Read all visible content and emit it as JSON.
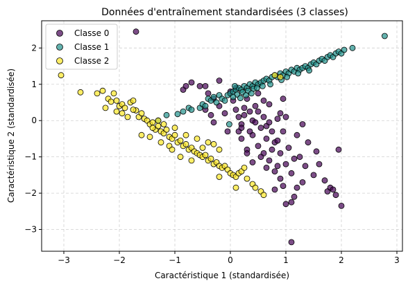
{
  "chart_data": {
    "type": "scatter",
    "title": "Données d'entraînement standardisées (3 classes)",
    "xlabel": "Caractéristique 1 (standardisée)",
    "ylabel": "Caractéristique 2 (standardisée)",
    "xlim": [
      -3.4,
      3.1
    ],
    "ylim": [
      -3.6,
      2.75
    ],
    "xticks": [
      -3,
      -2,
      -1,
      0,
      1,
      2,
      3
    ],
    "yticks": [
      -3,
      -2,
      -1,
      0,
      1,
      2
    ],
    "grid": true,
    "legend_position": "top-left",
    "series": [
      {
        "name": "Classe 0",
        "color": "#440154",
        "points": [
          [
            -1.7,
            2.45
          ],
          [
            -0.85,
            0.85
          ],
          [
            -0.8,
            0.95
          ],
          [
            -0.7,
            1.05
          ],
          [
            -0.55,
            0.95
          ],
          [
            -0.45,
            0.95
          ],
          [
            -0.4,
            0.75
          ],
          [
            -0.2,
            1.1
          ],
          [
            -0.1,
            0.2
          ],
          [
            0.0,
            0.8
          ],
          [
            0.05,
            0.55
          ],
          [
            0.1,
            0.3
          ],
          [
            0.15,
            0.1
          ],
          [
            0.2,
            -0.1
          ],
          [
            0.25,
            0.35
          ],
          [
            0.3,
            0.6
          ],
          [
            0.35,
            0.25
          ],
          [
            0.4,
            0.0
          ],
          [
            0.45,
            0.4
          ],
          [
            0.5,
            0.25
          ],
          [
            0.55,
            -0.2
          ],
          [
            0.6,
            0.1
          ],
          [
            0.65,
            -0.5
          ],
          [
            0.7,
            0.45
          ],
          [
            0.75,
            -0.3
          ],
          [
            0.8,
            -0.6
          ],
          [
            0.85,
            0.05
          ],
          [
            0.9,
            -0.9
          ],
          [
            0.95,
            -0.3
          ],
          [
            1.0,
            -1.2
          ],
          [
            1.05,
            -0.75
          ],
          [
            1.1,
            -1.45
          ],
          [
            1.15,
            -2.1
          ],
          [
            1.2,
            -1.85
          ],
          [
            1.25,
            -1.0
          ],
          [
            1.3,
            -1.7
          ],
          [
            1.35,
            -1.25
          ],
          [
            1.4,
            -0.6
          ],
          [
            1.5,
            -1.5
          ],
          [
            1.55,
            -0.85
          ],
          [
            1.6,
            -1.2
          ],
          [
            1.7,
            -1.65
          ],
          [
            1.75,
            -1.95
          ],
          [
            1.8,
            -1.85
          ],
          [
            1.85,
            -1.9
          ],
          [
            1.9,
            -2.05
          ],
          [
            1.95,
            -0.8
          ],
          [
            2.0,
            -2.35
          ],
          [
            1.0,
            -2.3
          ],
          [
            1.1,
            -2.25
          ],
          [
            1.1,
            -3.35
          ],
          [
            0.2,
            -0.5
          ],
          [
            0.3,
            -0.8
          ],
          [
            0.4,
            -0.4
          ],
          [
            0.5,
            -0.7
          ],
          [
            0.6,
            -0.9
          ],
          [
            0.7,
            -1.1
          ],
          [
            0.8,
            -1.4
          ],
          [
            0.9,
            -1.6
          ],
          [
            0.95,
            -1.8
          ],
          [
            0.35,
            -0.3
          ],
          [
            0.55,
            -1.0
          ],
          [
            0.75,
            -0.8
          ],
          [
            0.85,
            -1.25
          ],
          [
            0.65,
            -0.15
          ],
          [
            0.45,
            -0.05
          ],
          [
            0.25,
            0.15
          ],
          [
            0.15,
            -0.3
          ],
          [
            -0.05,
            -0.3
          ],
          [
            -0.2,
            0.4
          ],
          [
            -0.3,
            0.6
          ],
          [
            -0.35,
            0.15
          ],
          [
            0.6,
            0.55
          ],
          [
            0.9,
            0.2
          ],
          [
            1.0,
            0.1
          ],
          [
            0.5,
            0.75
          ],
          [
            0.3,
            -0.9
          ],
          [
            0.4,
            -1.15
          ],
          [
            0.7,
            -0.05
          ],
          [
            0.2,
            -0.2
          ],
          [
            1.2,
            -0.4
          ],
          [
            1.3,
            -0.1
          ],
          [
            0.85,
            -0.55
          ],
          [
            0.95,
            0.6
          ],
          [
            -0.45,
            0.3
          ],
          [
            -0.3,
            -0.05
          ],
          [
            0.1,
            0.9
          ],
          [
            0.65,
            -1.3
          ],
          [
            1.15,
            -1.05
          ],
          [
            0.8,
            -1.9
          ]
        ]
      },
      {
        "name": "Classe 1",
        "color": "#21918c",
        "points": [
          [
            -1.3,
            0.0
          ],
          [
            -1.15,
            0.15
          ],
          [
            -0.95,
            0.18
          ],
          [
            -0.85,
            0.25
          ],
          [
            -0.75,
            0.35
          ],
          [
            -0.7,
            0.3
          ],
          [
            -0.55,
            0.35
          ],
          [
            -0.5,
            0.45
          ],
          [
            -0.4,
            0.6
          ],
          [
            -0.35,
            0.55
          ],
          [
            -0.3,
            0.65
          ],
          [
            -0.2,
            0.7
          ],
          [
            -0.15,
            0.6
          ],
          [
            -0.05,
            0.7
          ],
          [
            0.0,
            0.75
          ],
          [
            0.05,
            0.8
          ],
          [
            0.1,
            0.85
          ],
          [
            0.15,
            0.9
          ],
          [
            0.2,
            0.85
          ],
          [
            0.25,
            0.95
          ],
          [
            0.3,
            0.9
          ],
          [
            0.35,
            1.0
          ],
          [
            0.4,
            0.95
          ],
          [
            0.45,
            1.05
          ],
          [
            0.5,
            1.0
          ],
          [
            0.55,
            1.05
          ],
          [
            0.6,
            1.1
          ],
          [
            0.65,
            1.15
          ],
          [
            0.7,
            1.1
          ],
          [
            0.75,
            1.2
          ],
          [
            0.8,
            1.25
          ],
          [
            0.85,
            1.2
          ],
          [
            0.9,
            1.3
          ],
          [
            0.95,
            1.25
          ],
          [
            1.0,
            1.35
          ],
          [
            1.05,
            1.3
          ],
          [
            1.1,
            1.4
          ],
          [
            1.15,
            1.35
          ],
          [
            1.2,
            1.45
          ],
          [
            1.25,
            1.4
          ],
          [
            1.3,
            1.45
          ],
          [
            1.35,
            1.5
          ],
          [
            1.4,
            1.45
          ],
          [
            1.45,
            1.55
          ],
          [
            1.5,
            1.6
          ],
          [
            1.55,
            1.55
          ],
          [
            1.6,
            1.65
          ],
          [
            1.65,
            1.7
          ],
          [
            1.7,
            1.65
          ],
          [
            1.75,
            1.75
          ],
          [
            1.8,
            1.8
          ],
          [
            1.85,
            1.75
          ],
          [
            1.9,
            1.85
          ],
          [
            1.95,
            1.9
          ],
          [
            2.0,
            1.85
          ],
          [
            2.05,
            1.95
          ],
          [
            2.2,
            2.0
          ],
          [
            2.78,
            2.33
          ],
          [
            0.12,
            0.72
          ],
          [
            0.22,
            0.78
          ],
          [
            0.32,
            0.82
          ],
          [
            0.42,
            0.88
          ],
          [
            0.18,
            0.62
          ],
          [
            0.28,
            0.7
          ],
          [
            0.38,
            0.75
          ],
          [
            0.48,
            0.9
          ],
          [
            0.58,
            0.95
          ],
          [
            -0.1,
            0.55
          ],
          [
            -0.25,
            0.5
          ],
          [
            -0.45,
            0.4
          ],
          [
            0.05,
            0.65
          ],
          [
            1.02,
            1.2
          ],
          [
            1.22,
            1.3
          ],
          [
            1.42,
            1.38
          ],
          [
            0.72,
            1.0
          ],
          [
            0.92,
            1.12
          ],
          [
            -0.02,
            -0.1
          ],
          [
            0.08,
            0.95
          ]
        ]
      },
      {
        "name": "Classe 2",
        "color": "#fde725",
        "points": [
          [
            -3.05,
            1.25
          ],
          [
            -2.7,
            0.78
          ],
          [
            -2.4,
            0.75
          ],
          [
            -2.3,
            0.82
          ],
          [
            -2.2,
            0.6
          ],
          [
            -2.15,
            0.52
          ],
          [
            -2.1,
            0.75
          ],
          [
            -2.05,
            0.55
          ],
          [
            -2.0,
            0.4
          ],
          [
            -1.95,
            0.45
          ],
          [
            -1.9,
            0.35
          ],
          [
            -1.8,
            0.5
          ],
          [
            -1.75,
            0.55
          ],
          [
            -1.7,
            0.28
          ],
          [
            -1.65,
            0.1
          ],
          [
            -1.6,
            0.2
          ],
          [
            -1.55,
            0.05
          ],
          [
            -1.5,
            0.0
          ],
          [
            -1.45,
            -0.1
          ],
          [
            -1.4,
            -0.05
          ],
          [
            -1.35,
            -0.25
          ],
          [
            -1.3,
            -0.15
          ],
          [
            -1.25,
            -0.3
          ],
          [
            -1.2,
            -0.35
          ],
          [
            -1.15,
            -0.25
          ],
          [
            -1.1,
            -0.45
          ],
          [
            -1.05,
            -0.5
          ],
          [
            -1.0,
            -0.4
          ],
          [
            -0.95,
            -0.6
          ],
          [
            -0.9,
            -0.55
          ],
          [
            -0.85,
            -0.7
          ],
          [
            -0.8,
            -0.65
          ],
          [
            -0.75,
            -0.8
          ],
          [
            -0.7,
            -0.75
          ],
          [
            -0.65,
            -0.85
          ],
          [
            -0.6,
            -0.9
          ],
          [
            -0.55,
            -0.95
          ],
          [
            -0.5,
            -1.0
          ],
          [
            -0.45,
            -0.95
          ],
          [
            -0.4,
            -1.1
          ],
          [
            -0.35,
            -1.05
          ],
          [
            -0.3,
            -1.2
          ],
          [
            -0.25,
            -1.15
          ],
          [
            -0.2,
            -1.25
          ],
          [
            -0.15,
            -1.3
          ],
          [
            -0.1,
            -1.25
          ],
          [
            -0.05,
            -1.35
          ],
          [
            0.0,
            -1.45
          ],
          [
            0.05,
            -1.5
          ],
          [
            0.1,
            -1.55
          ],
          [
            0.15,
            -1.45
          ],
          [
            0.2,
            -1.4
          ],
          [
            0.25,
            -1.3
          ],
          [
            0.3,
            -1.6
          ],
          [
            0.4,
            -1.75
          ],
          [
            0.45,
            -1.85
          ],
          [
            0.55,
            -1.95
          ],
          [
            0.6,
            -2.05
          ],
          [
            -0.2,
            -1.55
          ],
          [
            0.1,
            -1.85
          ],
          [
            0.8,
            1.25
          ],
          [
            0.9,
            1.2
          ],
          [
            -2.25,
            0.35
          ],
          [
            -1.95,
            0.2
          ],
          [
            -1.85,
            0.1
          ],
          [
            -1.3,
            0.0
          ],
          [
            -1.2,
            -0.1
          ],
          [
            -1.0,
            -0.2
          ],
          [
            -1.1,
            -0.7
          ],
          [
            -0.8,
            -0.4
          ],
          [
            -0.6,
            -0.5
          ],
          [
            -0.5,
            -0.75
          ],
          [
            -0.3,
            -0.65
          ],
          [
            -0.2,
            -0.8
          ],
          [
            -0.4,
            -0.6
          ],
          [
            -1.25,
            -0.6
          ],
          [
            -1.45,
            -0.45
          ],
          [
            -1.05,
            -0.8
          ],
          [
            -1.6,
            -0.4
          ],
          [
            -1.4,
            -0.2
          ],
          [
            -0.7,
            -1.1
          ],
          [
            -0.9,
            -1.0
          ],
          [
            -1.75,
            0.3
          ],
          [
            -2.05,
            0.25
          ]
        ]
      }
    ]
  }
}
